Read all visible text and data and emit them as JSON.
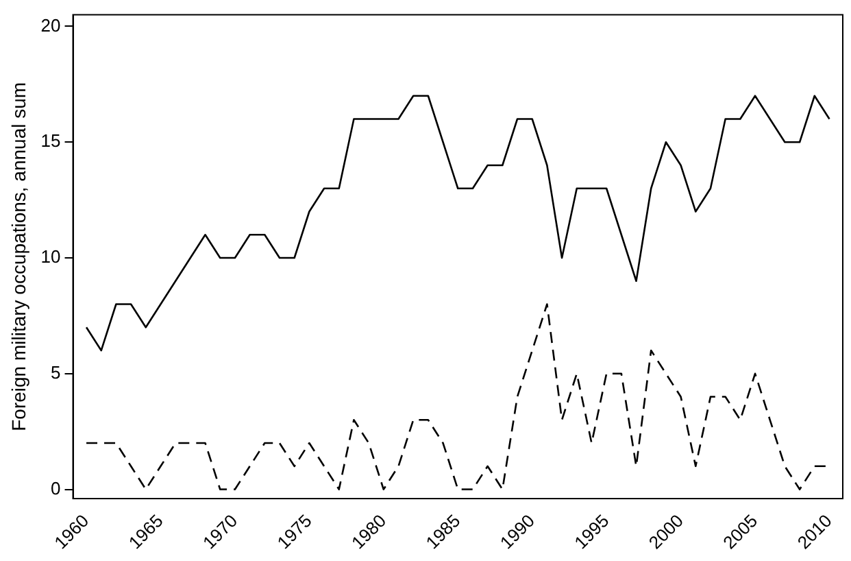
{
  "chart_data": {
    "type": "line",
    "ylabel": "Foreign military occupations, annual sum",
    "x": [
      1960,
      1961,
      1962,
      1963,
      1964,
      1965,
      1966,
      1967,
      1968,
      1969,
      1970,
      1971,
      1972,
      1973,
      1974,
      1975,
      1976,
      1977,
      1978,
      1979,
      1980,
      1981,
      1982,
      1983,
      1984,
      1985,
      1986,
      1987,
      1988,
      1989,
      1990,
      1991,
      1992,
      1993,
      1994,
      1995,
      1996,
      1997,
      1998,
      1999,
      2000,
      2001,
      2002,
      2003,
      2004,
      2005,
      2006,
      2007,
      2008,
      2009,
      2010
    ],
    "series": [
      {
        "color": "#000000",
        "line_style": "solid",
        "values": [
          7,
          6,
          8,
          8,
          7,
          8,
          9,
          10,
          11,
          10,
          10,
          11,
          11,
          10,
          10,
          12,
          13,
          13,
          16,
          16,
          16,
          16,
          17,
          17,
          15,
          13,
          13,
          14,
          14,
          16,
          16,
          14,
          10,
          13,
          13,
          13,
          11,
          9,
          13,
          15,
          14,
          12,
          13,
          16,
          16,
          17,
          16,
          15,
          15,
          17,
          16
        ]
      },
      {
        "color": "#000000",
        "line_style": "dashed",
        "values": [
          2,
          2,
          2,
          1,
          0,
          1,
          2,
          2,
          2,
          0,
          0,
          1,
          2,
          2,
          1,
          2,
          1,
          0,
          3,
          2,
          0,
          1,
          3,
          3,
          2,
          0,
          0,
          1,
          0,
          4,
          6,
          8,
          3,
          5,
          2,
          5,
          5,
          1,
          6,
          5,
          4,
          1,
          4,
          4,
          3,
          5,
          3,
          1,
          0,
          1,
          1
        ]
      }
    ],
    "xlim": [
      1959.1,
      2010.9
    ],
    "xticks": [
      1960,
      1965,
      1970,
      1975,
      1980,
      1985,
      1990,
      1995,
      2000,
      2005,
      2010
    ],
    "ylim": [
      -0.4,
      20.5
    ],
    "yticks": [
      0,
      5,
      10,
      15,
      20
    ],
    "grid": false,
    "legend": false,
    "marker": "none"
  }
}
